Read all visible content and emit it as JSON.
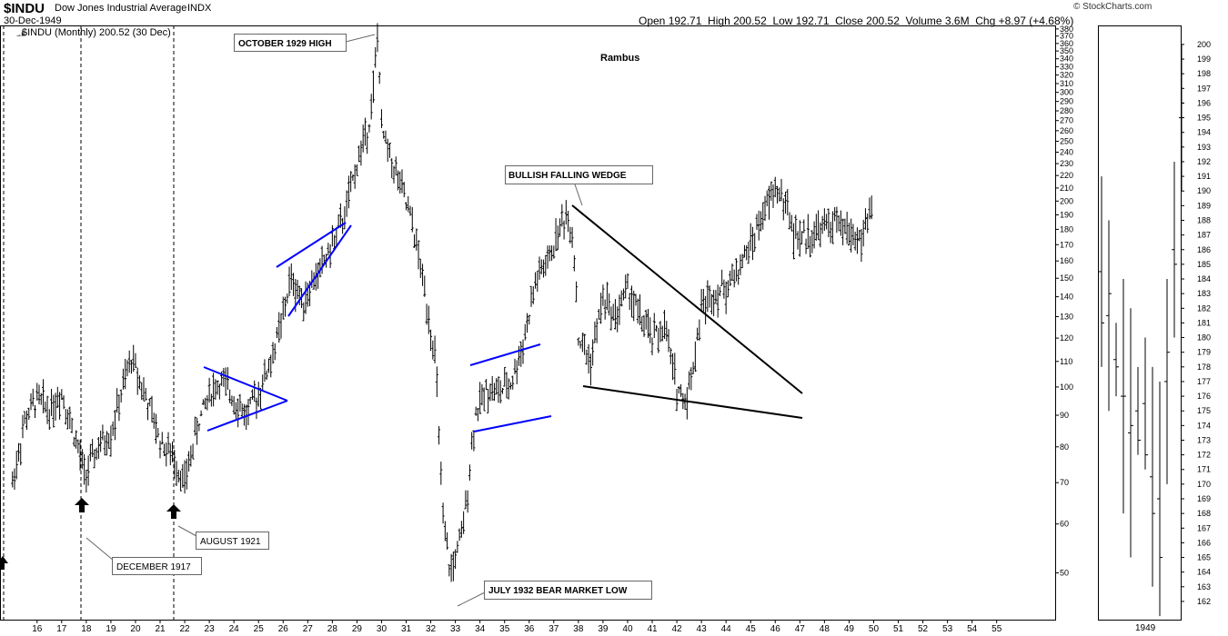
{
  "header": {
    "symbol": "$INDU",
    "name": "Dow Jones Industrial Average",
    "exchange": "INDX",
    "date": "30-Dec-1949",
    "legend": "$INDU (Monthly) 200.52 (30 Dec)",
    "ohlc": "Open 192.71  High 200.52  Low 192.71  Close 200.52  Volume 3.6M  Chg +8.97 (+4.68%)",
    "credit": "© StockCharts.com"
  },
  "watermark": "Rambus",
  "colors": {
    "price": "#000000",
    "blue_trendline": "#0000ff",
    "black_trendline": "#000000",
    "grid": "#cccccc"
  },
  "annotations": {
    "oct1929": "OCTOBER 1929 HIGH",
    "wedge": "BULLISH FALLING WEDGE",
    "aug1921": "AUGUST 1921",
    "dec1917": "DECEMBER 1917",
    "jul1932": "JULY 1932 BEAR MARKET LOW"
  },
  "chart_data": [
    {
      "type": "line",
      "subtype": "ohlc-bars",
      "title": "$INDU (Monthly) 200.52 (30 Dec)",
      "y_scale": "log",
      "y_ticks": [
        50,
        60,
        70,
        80,
        90,
        100,
        110,
        120,
        130,
        140,
        150,
        160,
        170,
        180,
        190,
        200,
        210,
        220,
        230,
        240,
        250,
        260,
        270,
        280,
        290,
        300,
        310,
        320,
        330,
        340,
        350,
        360,
        370,
        380
      ],
      "x_ticks": [
        "16",
        "17",
        "18",
        "19",
        "20",
        "21",
        "22",
        "23",
        "24",
        "25",
        "26",
        "27",
        "28",
        "29",
        "30",
        "31",
        "32",
        "33",
        "34",
        "35",
        "36",
        "37",
        "38",
        "39",
        "40",
        "41",
        "42",
        "43",
        "44",
        "45",
        "46",
        "47",
        "48",
        "49",
        "50",
        "51",
        "52",
        "53",
        "54",
        "55"
      ],
      "ylim": [
        42,
        385
      ],
      "xlim": [
        1914.8,
        1955.5
      ],
      "series": [
        {
          "x": [
            1915.0,
            1915.5,
            1916.0,
            1916.5,
            1917.0,
            1917.5,
            1917.95,
            1918.5,
            1919.0,
            1919.5,
            1919.85,
            1920.5,
            1921.0,
            1921.6,
            1922.0,
            1922.5,
            1923.0,
            1923.5,
            1924.0,
            1924.5,
            1925.0,
            1925.5,
            1926.0,
            1926.3,
            1926.8,
            1927.5,
            1928.0,
            1928.5,
            1929.0,
            1929.5,
            1929.7,
            1929.85,
            1930.0,
            1930.3,
            1930.8,
            1931.3,
            1931.8,
            1932.2,
            1932.5,
            1932.8,
            1933.3,
            1933.8,
            1934.3,
            1934.8,
            1935.3,
            1935.8,
            1936.3,
            1936.8,
            1937.2,
            1937.5,
            1937.8,
            1938.0,
            1938.5,
            1939.0,
            1939.5,
            1940.0,
            1940.5,
            1941.0,
            1941.5,
            1942.0,
            1942.35,
            1942.7,
            1943.0,
            1943.5,
            1944.0,
            1944.5,
            1945.0,
            1945.5,
            1946.0,
            1946.4,
            1946.8,
            1947.3,
            1947.8,
            1948.3,
            1948.8,
            1949.3,
            1949.5,
            1949.95
          ],
          "y": [
            70,
            88,
            96,
            92,
            98,
            84,
            72,
            80,
            84,
            100,
            112,
            94,
            82,
            76,
            70,
            86,
            98,
            102,
            96,
            90,
            98,
            110,
            130,
            150,
            138,
            155,
            170,
            190,
            230,
            270,
            310,
            380,
            260,
            240,
            210,
            180,
            140,
            110,
            60,
            50,
            58,
            90,
            100,
            98,
            102,
            120,
            150,
            160,
            180,
            190,
            175,
            120,
            110,
            140,
            130,
            145,
            130,
            120,
            125,
            100,
            95,
            110,
            135,
            142,
            145,
            155,
            170,
            190,
            210,
            200,
            175,
            175,
            180,
            185,
            180,
            175,
            172,
            200
          ]
        }
      ]
    },
    {
      "type": "line",
      "subtype": "ohlc-bars",
      "title": "1949 inset",
      "y_ticks": [
        162,
        163,
        164,
        165,
        166,
        167,
        168,
        169,
        170,
        171,
        172,
        173,
        174,
        175,
        176,
        177,
        178,
        179,
        180,
        181,
        182,
        183,
        184,
        185,
        186,
        187,
        188,
        189,
        190,
        191,
        192,
        193,
        194,
        195,
        196,
        197,
        198,
        199,
        200
      ],
      "x_ticks": [
        "1949"
      ],
      "ylim": [
        161.5,
        200.8
      ],
      "series": [
        {
          "x": [
            1,
            2,
            3,
            4,
            5,
            6,
            7,
            8,
            9,
            10,
            11,
            12
          ],
          "y": [
            181,
            183,
            178,
            176,
            174,
            173,
            172,
            168,
            165,
            179,
            185,
            196
          ]
        }
      ]
    }
  ]
}
